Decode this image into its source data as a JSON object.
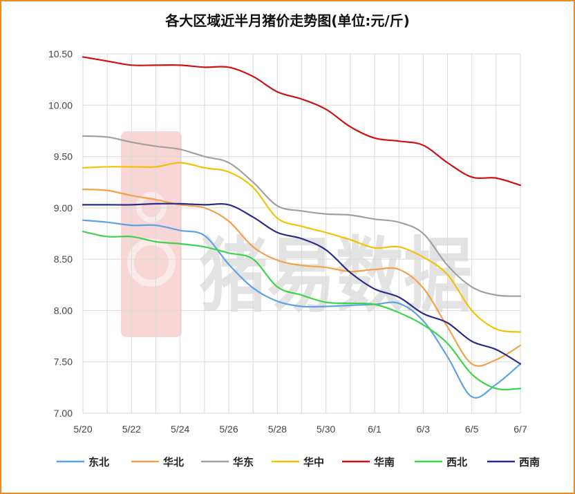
{
  "chart_data": {
    "type": "line",
    "title": "各大区域近半月猪价走势图(单位:元/斤)",
    "watermark": "猪易数据",
    "categories": [
      "5/20",
      "5/21",
      "5/22",
      "5/23",
      "5/24",
      "5/25",
      "5/26",
      "5/27",
      "5/28",
      "5/29",
      "5/30",
      "5/31",
      "6/1",
      "6/2",
      "6/3",
      "6/4",
      "6/5",
      "6/6",
      "6/7"
    ],
    "x_tick_labels": [
      "5/20",
      "5/22",
      "5/24",
      "5/26",
      "5/28",
      "5/30",
      "6/1",
      "6/3",
      "6/5",
      "6/7"
    ],
    "y_tick_labels": [
      "7.00",
      "7.50",
      "8.00",
      "8.50",
      "9.00",
      "9.50",
      "10.00",
      "10.50"
    ],
    "ylim": [
      7.0,
      10.5
    ],
    "grid": true,
    "legend_position": "bottom",
    "series": [
      {
        "name": "东北",
        "color": "#5ba3e6",
        "values": [
          8.88,
          8.86,
          8.83,
          8.83,
          8.78,
          8.73,
          8.45,
          8.22,
          8.09,
          8.04,
          8.04,
          8.05,
          8.06,
          8.07,
          7.9,
          7.55,
          7.16,
          7.28,
          7.48
        ]
      },
      {
        "name": "华北",
        "color": "#f5a04a",
        "values": [
          9.18,
          9.17,
          9.12,
          9.08,
          9.03,
          9.0,
          8.87,
          8.62,
          8.49,
          8.44,
          8.42,
          8.38,
          8.4,
          8.4,
          8.22,
          7.84,
          7.48,
          7.52,
          7.66
        ]
      },
      {
        "name": "华东",
        "color": "#a0a0a0",
        "values": [
          9.7,
          9.69,
          9.64,
          9.6,
          9.57,
          9.5,
          9.44,
          9.25,
          9.02,
          8.97,
          8.94,
          8.93,
          8.89,
          8.86,
          8.75,
          8.44,
          8.23,
          8.15,
          8.14
        ]
      },
      {
        "name": "华中",
        "color": "#f2c200",
        "values": [
          9.39,
          9.4,
          9.4,
          9.4,
          9.44,
          9.39,
          9.35,
          9.2,
          8.9,
          8.82,
          8.76,
          8.69,
          8.61,
          8.62,
          8.52,
          8.35,
          8.0,
          7.82,
          7.79
        ]
      },
      {
        "name": "华南",
        "color": "#d01010",
        "values": [
          10.47,
          10.43,
          10.39,
          10.39,
          10.39,
          10.37,
          10.37,
          10.28,
          10.13,
          10.06,
          9.96,
          9.79,
          9.68,
          9.65,
          9.61,
          9.44,
          9.3,
          9.29,
          9.22
        ]
      },
      {
        "name": "西北",
        "color": "#3dd44a",
        "values": [
          8.77,
          8.72,
          8.72,
          8.67,
          8.65,
          8.62,
          8.56,
          8.5,
          8.23,
          8.15,
          8.08,
          8.07,
          8.06,
          7.98,
          7.86,
          7.68,
          7.38,
          7.24,
          7.24
        ]
      },
      {
        "name": "西南",
        "color": "#2b2b8c",
        "values": [
          9.03,
          9.03,
          9.03,
          9.04,
          9.04,
          9.03,
          9.03,
          8.91,
          8.76,
          8.7,
          8.59,
          8.37,
          8.21,
          8.13,
          7.97,
          7.88,
          7.7,
          7.62,
          7.48
        ]
      }
    ]
  }
}
